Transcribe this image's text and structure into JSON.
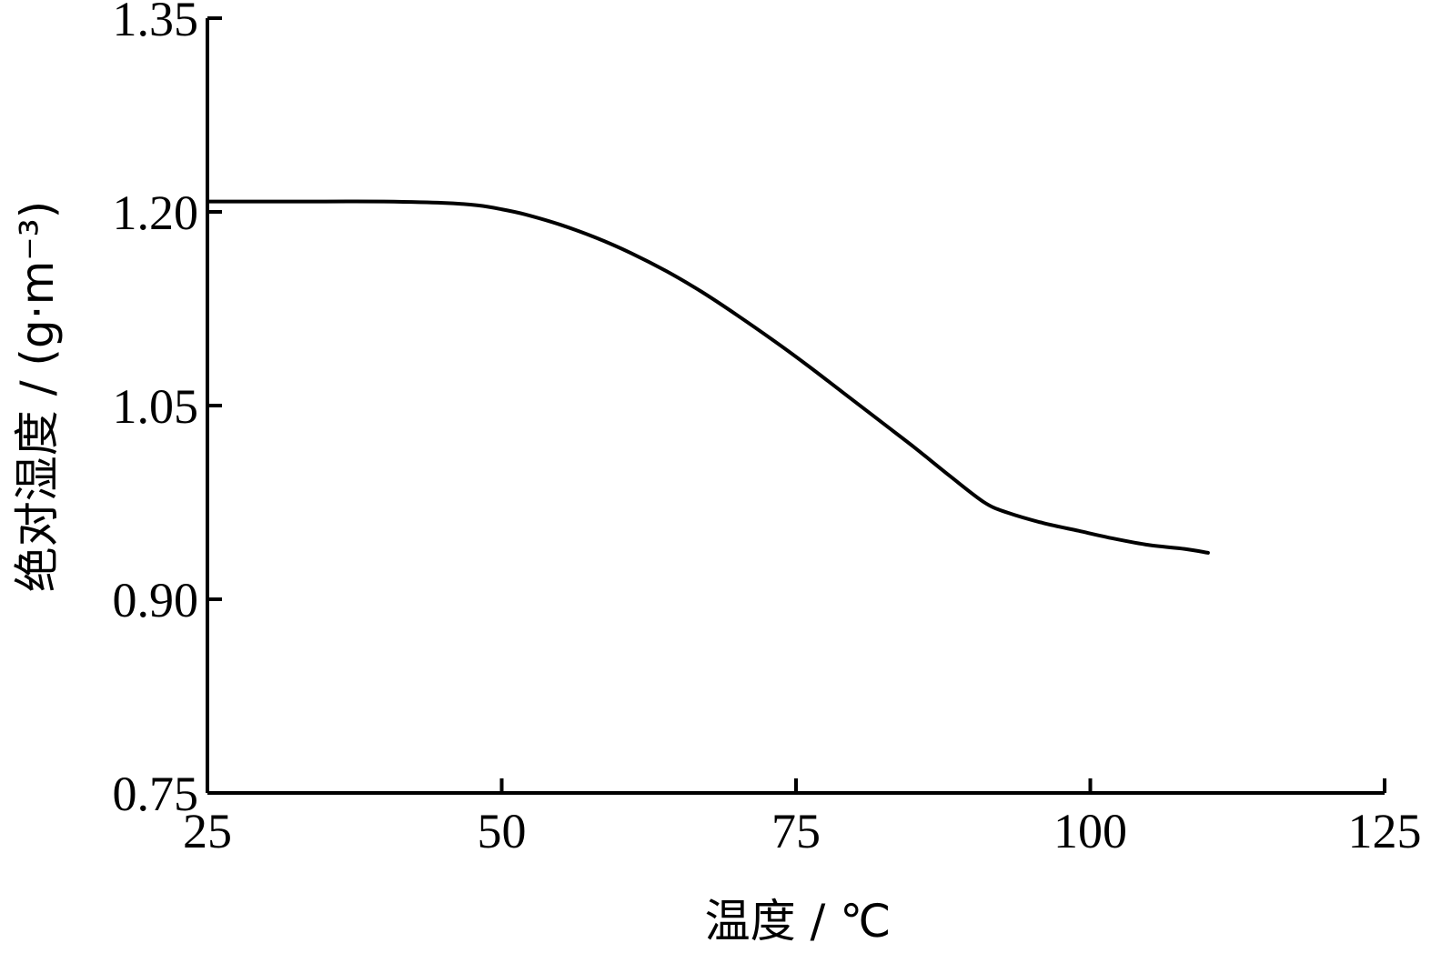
{
  "chart_data": {
    "type": "line",
    "title": "",
    "xlabel": "温度 / ℃",
    "ylabel": "绝对湿度 / (g·m⁻³)",
    "xlim": [
      25,
      125
    ],
    "ylim": [
      0.75,
      1.35
    ],
    "x_ticks": [
      "25",
      "50",
      "75",
      "100",
      "125"
    ],
    "y_ticks": [
      "0.75",
      "0.90",
      "1.05",
      "1.20",
      "1.35"
    ],
    "grid": false,
    "line_color": "#000000",
    "series": [
      {
        "x": [
          25,
          30,
          35,
          40,
          45,
          48,
          50,
          52,
          55,
          58,
          61,
          64,
          67,
          70,
          73,
          76,
          79,
          82,
          85,
          88,
          91,
          93,
          96,
          99,
          102,
          105,
          108,
          110
        ],
        "y": [
          1.208,
          1.208,
          1.208,
          1.208,
          1.207,
          1.205,
          1.202,
          1.198,
          1.19,
          1.18,
          1.168,
          1.154,
          1.138,
          1.12,
          1.101,
          1.081,
          1.06,
          1.039,
          1.018,
          0.996,
          0.975,
          0.967,
          0.959,
          0.953,
          0.947,
          0.942,
          0.939,
          0.936
        ]
      }
    ]
  }
}
